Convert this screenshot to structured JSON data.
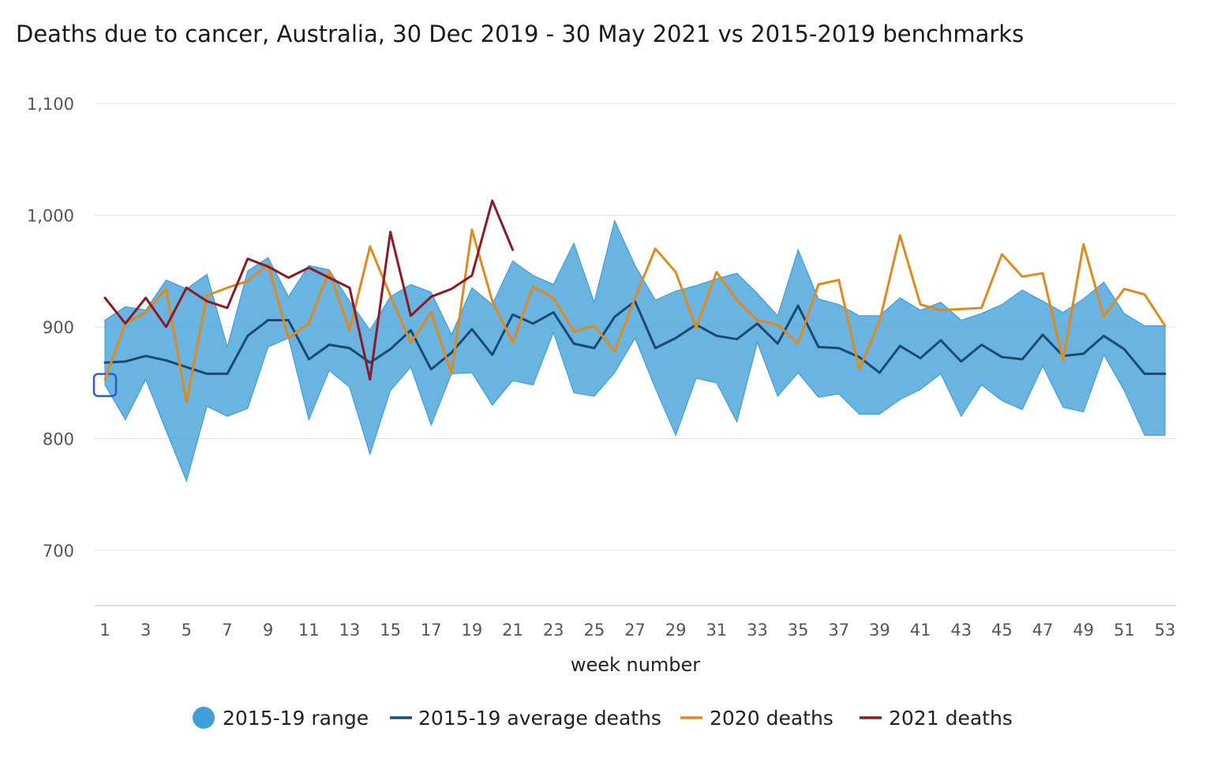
{
  "chart_data": {
    "type": "line",
    "title": "Deaths due to cancer, Australia, 30 Dec 2019 - 30 May 2021 vs 2015-2019 benchmarks",
    "xlabel": "week number",
    "ylabel": "",
    "xlim": [
      1,
      53
    ],
    "ylim": [
      650,
      1100
    ],
    "yticks": [
      700,
      800,
      900,
      1000,
      1100
    ],
    "ytick_labels": [
      "700",
      "800",
      "900",
      "1,000",
      "1,100"
    ],
    "xticks": [
      1,
      3,
      5,
      7,
      9,
      11,
      13,
      15,
      17,
      19,
      21,
      23,
      25,
      27,
      29,
      31,
      33,
      35,
      37,
      39,
      41,
      43,
      45,
      47,
      49,
      51,
      53
    ],
    "xtick_labels": [
      "1",
      "3",
      "5",
      "7",
      "9",
      "11",
      "13",
      "15",
      "17",
      "19",
      "21",
      "23",
      "25",
      "27",
      "29",
      "31",
      "33",
      "35",
      "37",
      "39",
      "41",
      "43",
      "45",
      "47",
      "49",
      "51",
      "53"
    ],
    "grid": true,
    "legend_position": "bottom",
    "range_series": {
      "name": "2015-19 range",
      "color": "#3f9fd8",
      "lower": [
        848,
        817,
        853,
        807,
        762,
        829,
        820,
        827,
        882,
        890,
        817,
        861,
        846,
        786,
        843,
        864,
        812,
        858,
        859,
        830,
        852,
        848,
        895,
        841,
        838,
        859,
        890,
        845,
        803,
        854,
        850,
        815,
        886,
        838,
        859,
        837,
        840,
        822,
        822,
        835,
        844,
        858,
        820,
        848,
        834,
        826,
        865,
        828,
        824,
        875,
        843,
        803,
        803
      ],
      "upper": [
        906,
        918,
        915,
        942,
        934,
        947,
        882,
        950,
        962,
        927,
        955,
        951,
        923,
        897,
        927,
        938,
        931,
        893,
        935,
        920,
        959,
        946,
        938,
        975,
        922,
        995,
        955,
        924,
        932,
        937,
        943,
        948,
        930,
        910,
        969,
        925,
        920,
        910,
        910,
        926,
        915,
        922,
        906,
        912,
        920,
        933,
        923,
        913,
        925,
        940,
        912,
        901,
        901
      ]
    },
    "series": [
      {
        "name": "2015-19 average deaths",
        "color": "#1a4a72",
        "values": [
          868,
          869,
          874,
          870,
          864,
          858,
          858,
          892,
          906,
          906,
          871,
          884,
          881,
          868,
          880,
          897,
          862,
          877,
          898,
          875,
          911,
          903,
          913,
          885,
          881,
          909,
          923,
          881,
          890,
          902,
          892,
          889,
          903,
          885,
          919,
          882,
          881,
          873,
          859,
          883,
          872,
          888,
          869,
          884,
          873,
          871,
          893,
          874,
          876,
          892,
          880,
          858,
          858
        ]
      },
      {
        "name": "2020 deaths",
        "color": "#e08a1e",
        "values": [
          853,
          903,
          913,
          934,
          833,
          928,
          935,
          941,
          956,
          890,
          903,
          950,
          897,
          972,
          928,
          886,
          913,
          858,
          987,
          923,
          886,
          936,
          926,
          896,
          901,
          878,
          926,
          970,
          949,
          899,
          949,
          924,
          906,
          902,
          885,
          938,
          942,
          862,
          905,
          982,
          920,
          915,
          916,
          917,
          965,
          945,
          948,
          870,
          974,
          909,
          934,
          929,
          901
        ]
      },
      {
        "name": "2021 deaths",
        "color": "#8b1a24",
        "values": [
          926,
          903,
          926,
          900,
          935,
          923,
          917,
          961,
          954,
          944,
          953,
          944,
          935,
          853,
          985,
          910,
          927,
          934,
          946,
          1013,
          969
        ]
      }
    ]
  }
}
